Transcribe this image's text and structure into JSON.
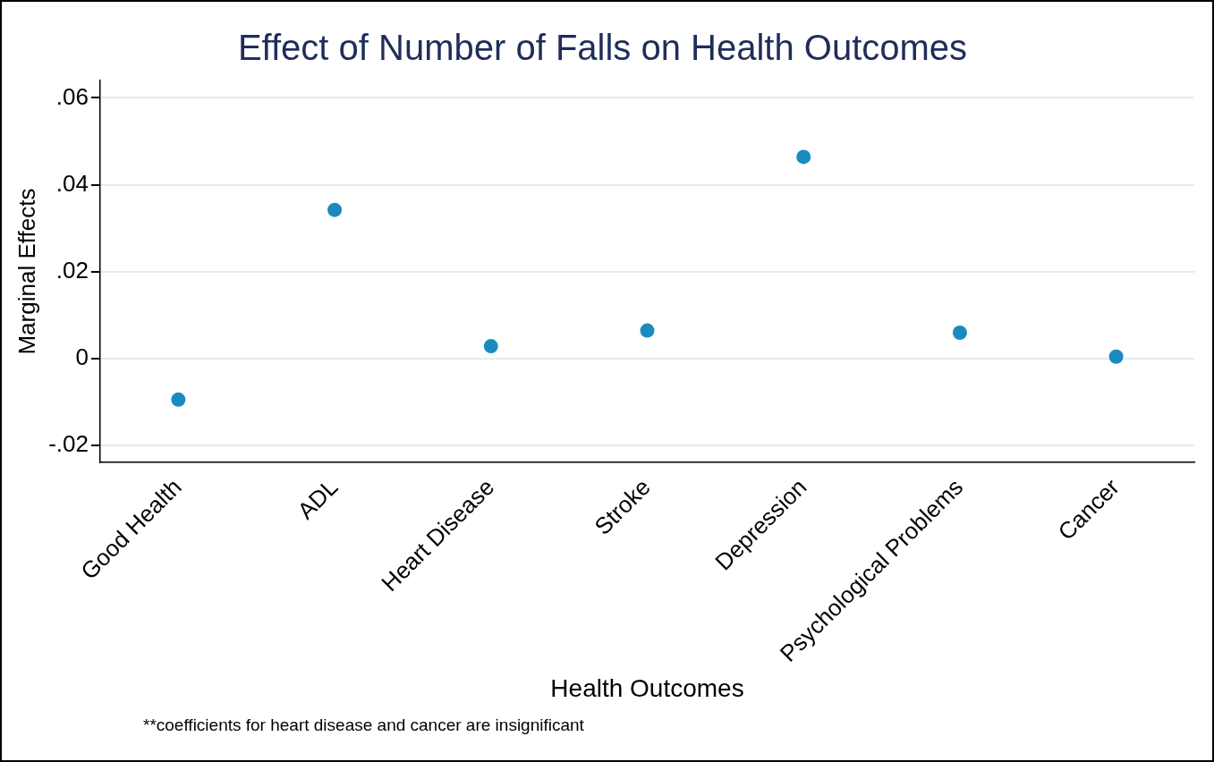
{
  "chart_data": {
    "type": "scatter",
    "title": "Effect of Number of Falls on Health Outcomes",
    "xlabel": "Health Outcomes",
    "ylabel": "Marginal Effects",
    "categories": [
      "Good Health",
      "ADL",
      "Heart Disease",
      "Stroke",
      "Depression",
      "Psychological Problems",
      "Cancer"
    ],
    "series": [
      {
        "color": "#1a8bbf",
        "values": [
          -0.0095,
          0.0342,
          0.0028,
          0.0064,
          0.0464,
          0.0059,
          0.0004
        ]
      }
    ],
    "ylim": [
      -0.024,
      0.064
    ],
    "yticks": [
      {
        "value": -0.02,
        "label": "-.02"
      },
      {
        "value": 0,
        "label": "0"
      },
      {
        "value": 0.02,
        "label": ".02"
      },
      {
        "value": 0.04,
        "label": ".04"
      },
      {
        "value": 0.06,
        "label": ".06"
      }
    ],
    "grid": "y",
    "legend": false,
    "marker": "circle",
    "annotations": [
      "**coefficients for heart disease and cancer are insignificant"
    ]
  }
}
